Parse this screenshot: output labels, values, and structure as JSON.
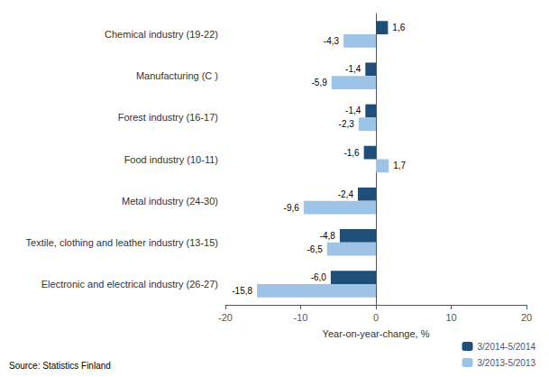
{
  "chart_data": {
    "type": "bar",
    "orientation": "horizontal",
    "categories": [
      "Electronic and electrical industry (26-27)",
      "Textile, clothing and leather industry (13-15)",
      "Metal industry (24-30)",
      "Food industry (10-11)",
      "Forest industry (16-17)",
      "Manufacturing (C )",
      "Chemical industry (19-22)"
    ],
    "series": [
      {
        "name": "3/2014-5/2014",
        "color": "#1f4e79",
        "values": [
          -6.0,
          -4.8,
          -2.4,
          -1.6,
          -1.4,
          -1.4,
          1.6
        ],
        "value_labels": [
          "-6,0",
          "-4,8",
          "-2,4",
          "-1,6",
          "-1,4",
          "-1,4",
          "1,6"
        ]
      },
      {
        "name": "3/2013-5/2013",
        "color": "#9dc3e6",
        "values": [
          -15.8,
          -6.5,
          -9.6,
          1.7,
          -2.3,
          -5.9,
          -4.3
        ],
        "value_labels": [
          "-15,8",
          "-6,5",
          "-9,6",
          "1,7",
          "-2,3",
          "-5,9",
          "-4,3"
        ]
      }
    ],
    "xlabel": "Year-on-year-change, %",
    "xlim": [
      -20,
      20
    ],
    "xticks": [
      -20,
      -10,
      0,
      10,
      20
    ],
    "data_labels": true,
    "grid": false,
    "legend": "lower right",
    "annotations": [
      "Source: Statistics Finland"
    ]
  }
}
